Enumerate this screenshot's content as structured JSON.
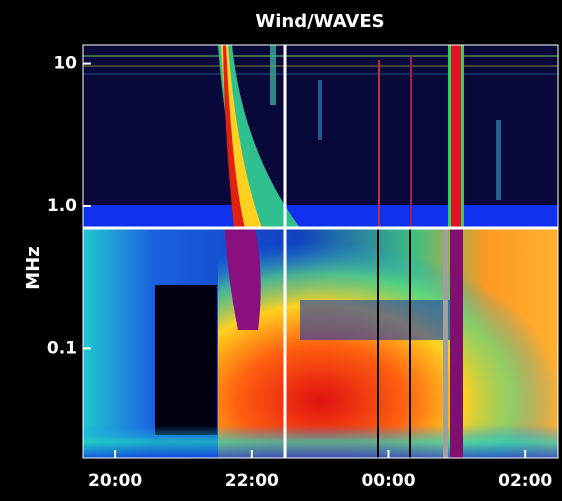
{
  "chart_data": {
    "type": "spectrogram",
    "title": "Wind/WAVES",
    "ylabel": "MHz",
    "ylog": true,
    "ylim": [
      0.017,
      13.5
    ],
    "yticks": [
      10,
      {
        "value": 1,
        "label": "1.0"
      },
      0.1
    ],
    "xlim": [
      19.53,
      26.48
    ],
    "xticks": [
      {
        "value": 20,
        "label": "20:00"
      },
      {
        "value": 22,
        "label": "22:00"
      },
      {
        "value": 24,
        "label": "00:00"
      },
      {
        "value": 26,
        "label": "02:00"
      }
    ]
  }
}
